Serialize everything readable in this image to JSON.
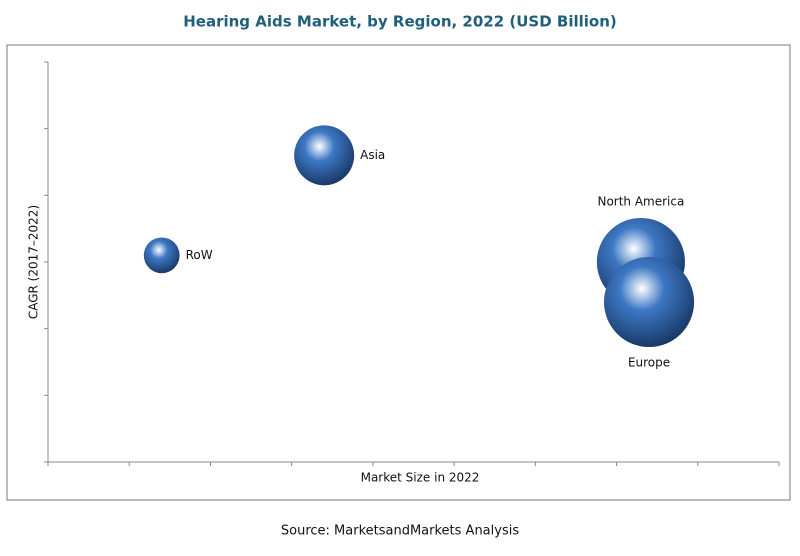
{
  "chart_data": {
    "type": "bubble",
    "title": "Hearing Aids Market, by Region, 2022 (USD Billion)",
    "x_label": "Market Size in 2022",
    "y_label": "CAGR (2017–2022)",
    "source": "Source: MarketsandMarkets Analysis",
    "xlim": [
      0,
      9
    ],
    "xticks": [
      0,
      1,
      2,
      3,
      4,
      5,
      6,
      7,
      8,
      9
    ],
    "ylim": [
      0,
      6
    ],
    "yticks": [
      0,
      1,
      2,
      3,
      4,
      5,
      6
    ],
    "series": [
      {
        "name": "RoW",
        "color": "#3d78c4",
        "x": [
          1.4
        ],
        "values": [
          3.1
        ],
        "sizes": [
          3.2
        ]
      },
      {
        "name": "Asia",
        "color": "#3d78c4",
        "x": [
          3.4
        ],
        "values": [
          4.6
        ],
        "sizes": [
          9
        ]
      },
      {
        "name": "North America",
        "color": "#3d78c4",
        "x": [
          7.3
        ],
        "values": [
          3.0
        ],
        "sizes": [
          19.4
        ]
      },
      {
        "name": "Europe",
        "color": "#3d78c4",
        "x": [
          7.4
        ],
        "values": [
          2.4
        ],
        "sizes": [
          20.3
        ]
      }
    ]
  }
}
